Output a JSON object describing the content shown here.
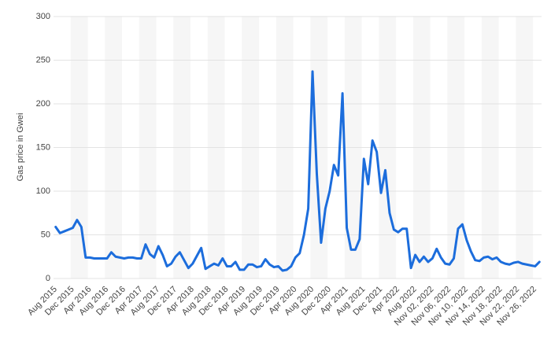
{
  "chart_data": {
    "type": "line",
    "y_label": "Gas price in Gwei",
    "categories": [
      "Aug 2015",
      null,
      null,
      null,
      "Dec 2015",
      null,
      null,
      null,
      "Apr 2016",
      null,
      null,
      null,
      "Aug 2016",
      null,
      null,
      null,
      "Dec 2016",
      null,
      null,
      null,
      "Apr 2017",
      null,
      null,
      null,
      "Aug 2017",
      null,
      null,
      null,
      "Dec 2017",
      null,
      null,
      null,
      "Apr 2018",
      null,
      null,
      null,
      "Aug 2018",
      null,
      null,
      null,
      "Dec 2018",
      null,
      null,
      null,
      "Apr 2019",
      null,
      null,
      null,
      "Aug 2019",
      null,
      null,
      null,
      "Dec 2019",
      null,
      null,
      null,
      "Apr 2020",
      null,
      null,
      null,
      "Aug 2020",
      null,
      null,
      null,
      "Dec 2020",
      null,
      null,
      null,
      "Apr 2021",
      null,
      null,
      null,
      "Aug 2021",
      null,
      null,
      null,
      "Dec 2021",
      null,
      null,
      null,
      "Apr 2022",
      null,
      null,
      null,
      "Aug 2022",
      null,
      null,
      null,
      "Nov 02, 2022",
      null,
      null,
      null,
      "Nov 06, 2022",
      null,
      null,
      null,
      "Nov 10, 2022",
      null,
      null,
      null,
      "Nov 14, 2022",
      null,
      null,
      null,
      "Nov 18, 2022",
      null,
      null,
      null,
      "Nov 22, 2022",
      null,
      null,
      null,
      "Nov 26, 2022",
      null
    ],
    "values": [
      59,
      52,
      54,
      56,
      58,
      67,
      59,
      24,
      24,
      23,
      23,
      23,
      23,
      30,
      25,
      24,
      23,
      24,
      24,
      23,
      23,
      39,
      28,
      24,
      37,
      27,
      14,
      17,
      25,
      30,
      21,
      12,
      17,
      26,
      35,
      11,
      14,
      17,
      15,
      23,
      14,
      14,
      19,
      10,
      10,
      16,
      16,
      13,
      14,
      22,
      16,
      13,
      14,
      9,
      10,
      14,
      24,
      29,
      50,
      80,
      237,
      120,
      41,
      80,
      100,
      130,
      118,
      212,
      58,
      33,
      33,
      45,
      137,
      108,
      158,
      145,
      98,
      124,
      75,
      56,
      53,
      57,
      57,
      12,
      27,
      19,
      25,
      19,
      23,
      34,
      24,
      17,
      16,
      23,
      57,
      62,
      44,
      31,
      21,
      20,
      24,
      25,
      22,
      24,
      19,
      17,
      16,
      18,
      19,
      17,
      16,
      15,
      14,
      19
    ],
    "color": "#1c6ddc",
    "ylim": [
      0,
      300
    ],
    "yticks": [
      0,
      50,
      100,
      150,
      200,
      250,
      300
    ],
    "grid": true
  }
}
